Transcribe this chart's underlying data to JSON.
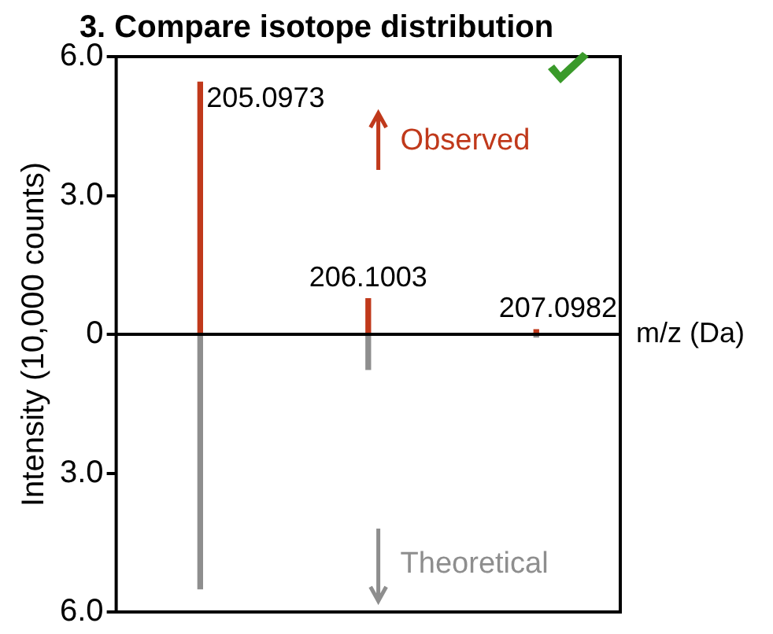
{
  "chart_data": {
    "type": "bar",
    "title": "3. Compare isotope distribution",
    "xlabel": "m/z (Da)",
    "ylabel": "Intensity (10,000 counts)",
    "categories": [
      null,
      null,
      null
    ],
    "series": [
      {
        "name": "Observed",
        "color": "#c0391b",
        "values": [
          5.45,
          0.77,
          0.1
        ]
      },
      {
        "name": "Theoretical",
        "color": "#8e8e8e",
        "values": [
          -5.5,
          -0.76,
          -0.06
        ]
      }
    ],
    "ylim": [
      -6,
      6
    ],
    "yticks": [
      {
        "value": -6,
        "label": "6.0"
      },
      {
        "value": -3,
        "label": "3.0"
      },
      {
        "value": 0,
        "label": "0"
      },
      {
        "value": 3,
        "label": "3.0"
      },
      {
        "value": 6,
        "label": "6.0"
      }
    ],
    "tick_labels": "y",
    "stacked": true,
    "grid": false,
    "legend": "right",
    "ref_lines": [
      {
        "axis": "y",
        "value": 0,
        "color": "#000000"
      }
    ],
    "annotations": [
      "205.0973",
      "206.1003",
      "207.0982"
    ]
  }
}
